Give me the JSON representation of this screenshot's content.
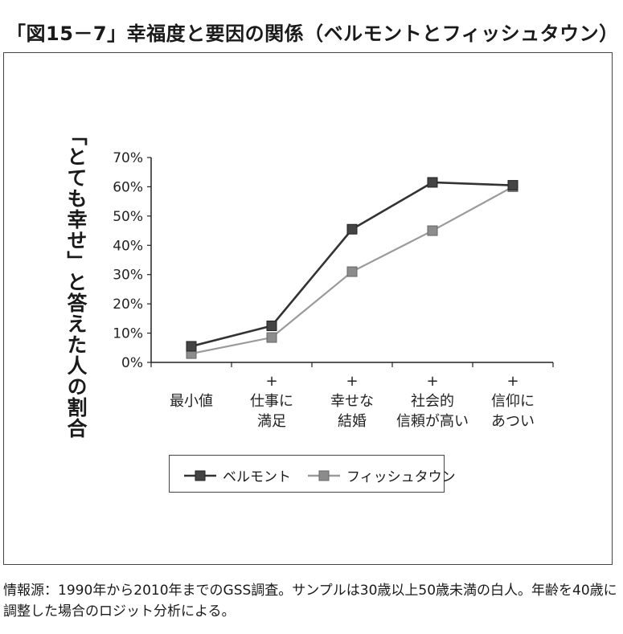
{
  "figure": {
    "title": "「図15－7」幸福度と要因の関係（ベルモントとフィッシュタウン）",
    "source_note": "情報源：1990年から2010年までのGSS調査。サンプルは30歳以上50歳未満の白人。年齢を40歳に調整した場合のロジット分析による。"
  },
  "chart_data": {
    "type": "line",
    "title": "",
    "ylabel": "「とても幸せ」と答えた人の割合",
    "xlabel": "",
    "ylim": [
      0,
      70
    ],
    "yticks": [
      "0%",
      "10%",
      "20%",
      "30%",
      "40%",
      "50%",
      "60%",
      "70%"
    ],
    "categories": [
      [
        "最小値"
      ],
      [
        "+",
        "仕事に",
        "満足"
      ],
      [
        "+",
        "幸せな",
        "結婚"
      ],
      [
        "+",
        "社会的",
        "信頼が高い"
      ],
      [
        "+",
        "信仰に",
        "あつい"
      ]
    ],
    "series": [
      {
        "name": "ベルモント",
        "values": [
          5.5,
          12.5,
          45.5,
          61.5,
          60.5
        ],
        "color": "#333333",
        "marker_color": "#444444"
      },
      {
        "name": "フィッシュタウン",
        "values": [
          3.0,
          8.5,
          31.0,
          45.0,
          60.0
        ],
        "color": "#9a9a9a",
        "marker_color": "#8c8c8c"
      }
    ],
    "grid": false,
    "legend_position": "bottom"
  }
}
